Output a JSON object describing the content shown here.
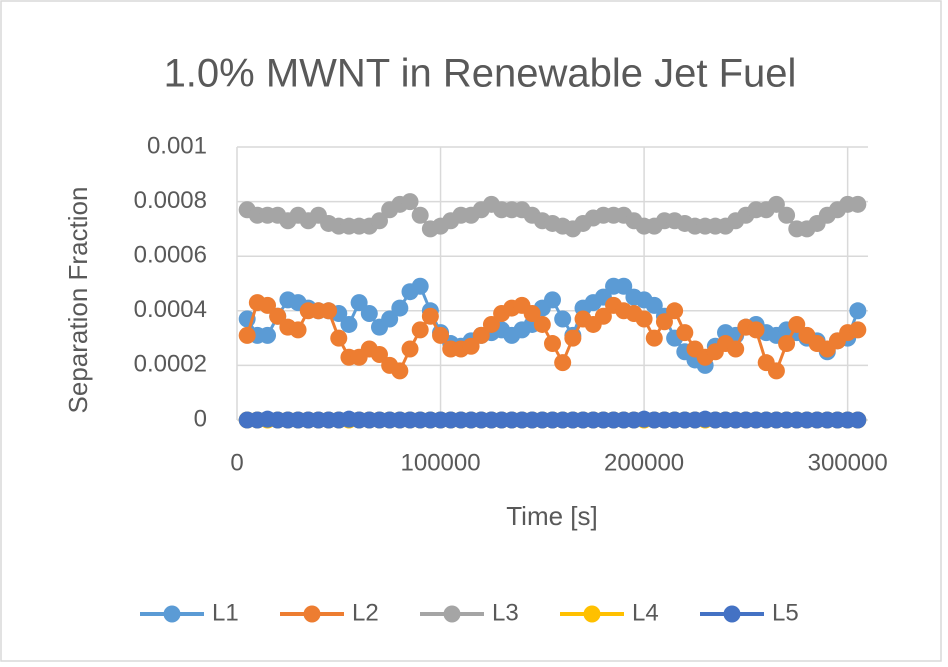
{
  "chart_data": {
    "type": "line",
    "title": "1.0% MWNT in Renewable Jet Fuel",
    "x_label": "Time [s]",
    "y_label": "Separation Fraction",
    "x": [
      5000,
      10000,
      15000,
      20000,
      25000,
      30000,
      35000,
      40000,
      45000,
      50000,
      55000,
      60000,
      65000,
      70000,
      75000,
      80000,
      85000,
      90000,
      95000,
      100000,
      105000,
      110000,
      115000,
      120000,
      125000,
      130000,
      135000,
      140000,
      145000,
      150000,
      155000,
      160000,
      165000,
      170000,
      175000,
      180000,
      185000,
      190000,
      195000,
      200000,
      205000,
      210000,
      215000,
      220000,
      225000,
      230000,
      235000,
      240000,
      245000,
      250000,
      255000,
      260000,
      265000,
      270000,
      275000,
      280000,
      285000,
      290000,
      295000,
      300000,
      305000
    ],
    "series": [
      {
        "name": "L1",
        "color": "#5b9bd5",
        "values": [
          0.00037,
          0.00031,
          0.00031,
          0.00038,
          0.00044,
          0.00043,
          0.00041,
          0.0004,
          0.0004,
          0.00039,
          0.00035,
          0.00043,
          0.00039,
          0.00034,
          0.00037,
          0.00041,
          0.00047,
          0.00049,
          0.0004,
          0.00032,
          0.00028,
          0.00027,
          0.00029,
          0.00031,
          0.00032,
          0.00033,
          0.00031,
          0.00033,
          0.00035,
          0.00041,
          0.00044,
          0.00037,
          0.00031,
          0.00041,
          0.00043,
          0.00045,
          0.00049,
          0.00049,
          0.00045,
          0.00044,
          0.00042,
          0.00038,
          0.0003,
          0.00025,
          0.00022,
          0.0002,
          0.00027,
          0.00032,
          0.00031,
          0.00034,
          0.00035,
          0.00032,
          0.00031,
          0.00033,
          0.00032,
          0.0003,
          0.00029,
          0.00025,
          0.00029,
          0.0003,
          0.0004
        ]
      },
      {
        "name": "L2",
        "color": "#ed7d31",
        "values": [
          0.00031,
          0.00043,
          0.00042,
          0.00038,
          0.00034,
          0.00033,
          0.0004,
          0.0004,
          0.0004,
          0.0003,
          0.00023,
          0.00023,
          0.00026,
          0.00024,
          0.0002,
          0.00018,
          0.00026,
          0.00033,
          0.00038,
          0.00031,
          0.00026,
          0.00026,
          0.00027,
          0.00031,
          0.00035,
          0.00039,
          0.00041,
          0.00042,
          0.00039,
          0.00035,
          0.00028,
          0.00021,
          0.0003,
          0.00037,
          0.00035,
          0.00038,
          0.00042,
          0.0004,
          0.00039,
          0.00037,
          0.0003,
          0.00036,
          0.0004,
          0.00032,
          0.00026,
          0.00023,
          0.00025,
          0.00028,
          0.00026,
          0.00034,
          0.00033,
          0.00021,
          0.00018,
          0.00028,
          0.00035,
          0.00031,
          0.00028,
          0.00026,
          0.00029,
          0.00032,
          0.00033
        ]
      },
      {
        "name": "L3",
        "color": "#a5a5a5",
        "values": [
          0.00077,
          0.00075,
          0.00075,
          0.00075,
          0.00073,
          0.00075,
          0.00073,
          0.00075,
          0.00072,
          0.00071,
          0.00071,
          0.00071,
          0.00071,
          0.00073,
          0.00077,
          0.00079,
          0.0008,
          0.00075,
          0.0007,
          0.00071,
          0.00073,
          0.00075,
          0.00075,
          0.00077,
          0.00079,
          0.00077,
          0.00077,
          0.00077,
          0.00075,
          0.00073,
          0.00072,
          0.00071,
          0.0007,
          0.00072,
          0.00074,
          0.00075,
          0.00075,
          0.00075,
          0.00073,
          0.00071,
          0.00071,
          0.00073,
          0.00073,
          0.00072,
          0.00071,
          0.00071,
          0.00071,
          0.00071,
          0.00073,
          0.00075,
          0.00077,
          0.00077,
          0.00079,
          0.00075,
          0.0007,
          0.0007,
          0.00072,
          0.00075,
          0.00077,
          0.00079,
          0.00079
        ]
      },
      {
        "name": "L4",
        "color": "#ffc000",
        "values": [
          0,
          0,
          0,
          0,
          0,
          0,
          0,
          0,
          0,
          0,
          0,
          0,
          0,
          0,
          0,
          0,
          0,
          0,
          0,
          0,
          0,
          0,
          0,
          0,
          0,
          0,
          0,
          0,
          0,
          0,
          0,
          0,
          0,
          0,
          0,
          0,
          0,
          0,
          0,
          0,
          0,
          0,
          0,
          0,
          0,
          0,
          0,
          0,
          0,
          0,
          0,
          0,
          0,
          0,
          0,
          0,
          0,
          0,
          0,
          0,
          0
        ]
      },
      {
        "name": "L5",
        "color": "#4472c4",
        "values": [
          0,
          0,
          3e-06,
          0,
          0,
          0,
          0,
          0,
          0,
          0,
          3e-06,
          0,
          0,
          0,
          0,
          0,
          0,
          0,
          0,
          0,
          0,
          0,
          0,
          0,
          0,
          0,
          0,
          0,
          0,
          0,
          0,
          0,
          0,
          0,
          0,
          0,
          0,
          0,
          0,
          3e-06,
          0,
          0,
          0,
          0,
          0,
          3e-06,
          0,
          0,
          0,
          0,
          0,
          0,
          0,
          0,
          0,
          0,
          0,
          0,
          0,
          0,
          0
        ]
      }
    ],
    "xlim": [
      0,
      310000
    ],
    "xticks": [
      0,
      100000,
      200000,
      300000
    ],
    "ylim": [
      0,
      0.001
    ],
    "yticks": [
      0,
      0.0002,
      0.0004,
      0.0006,
      0.0008,
      0.001
    ],
    "grid": true
  }
}
